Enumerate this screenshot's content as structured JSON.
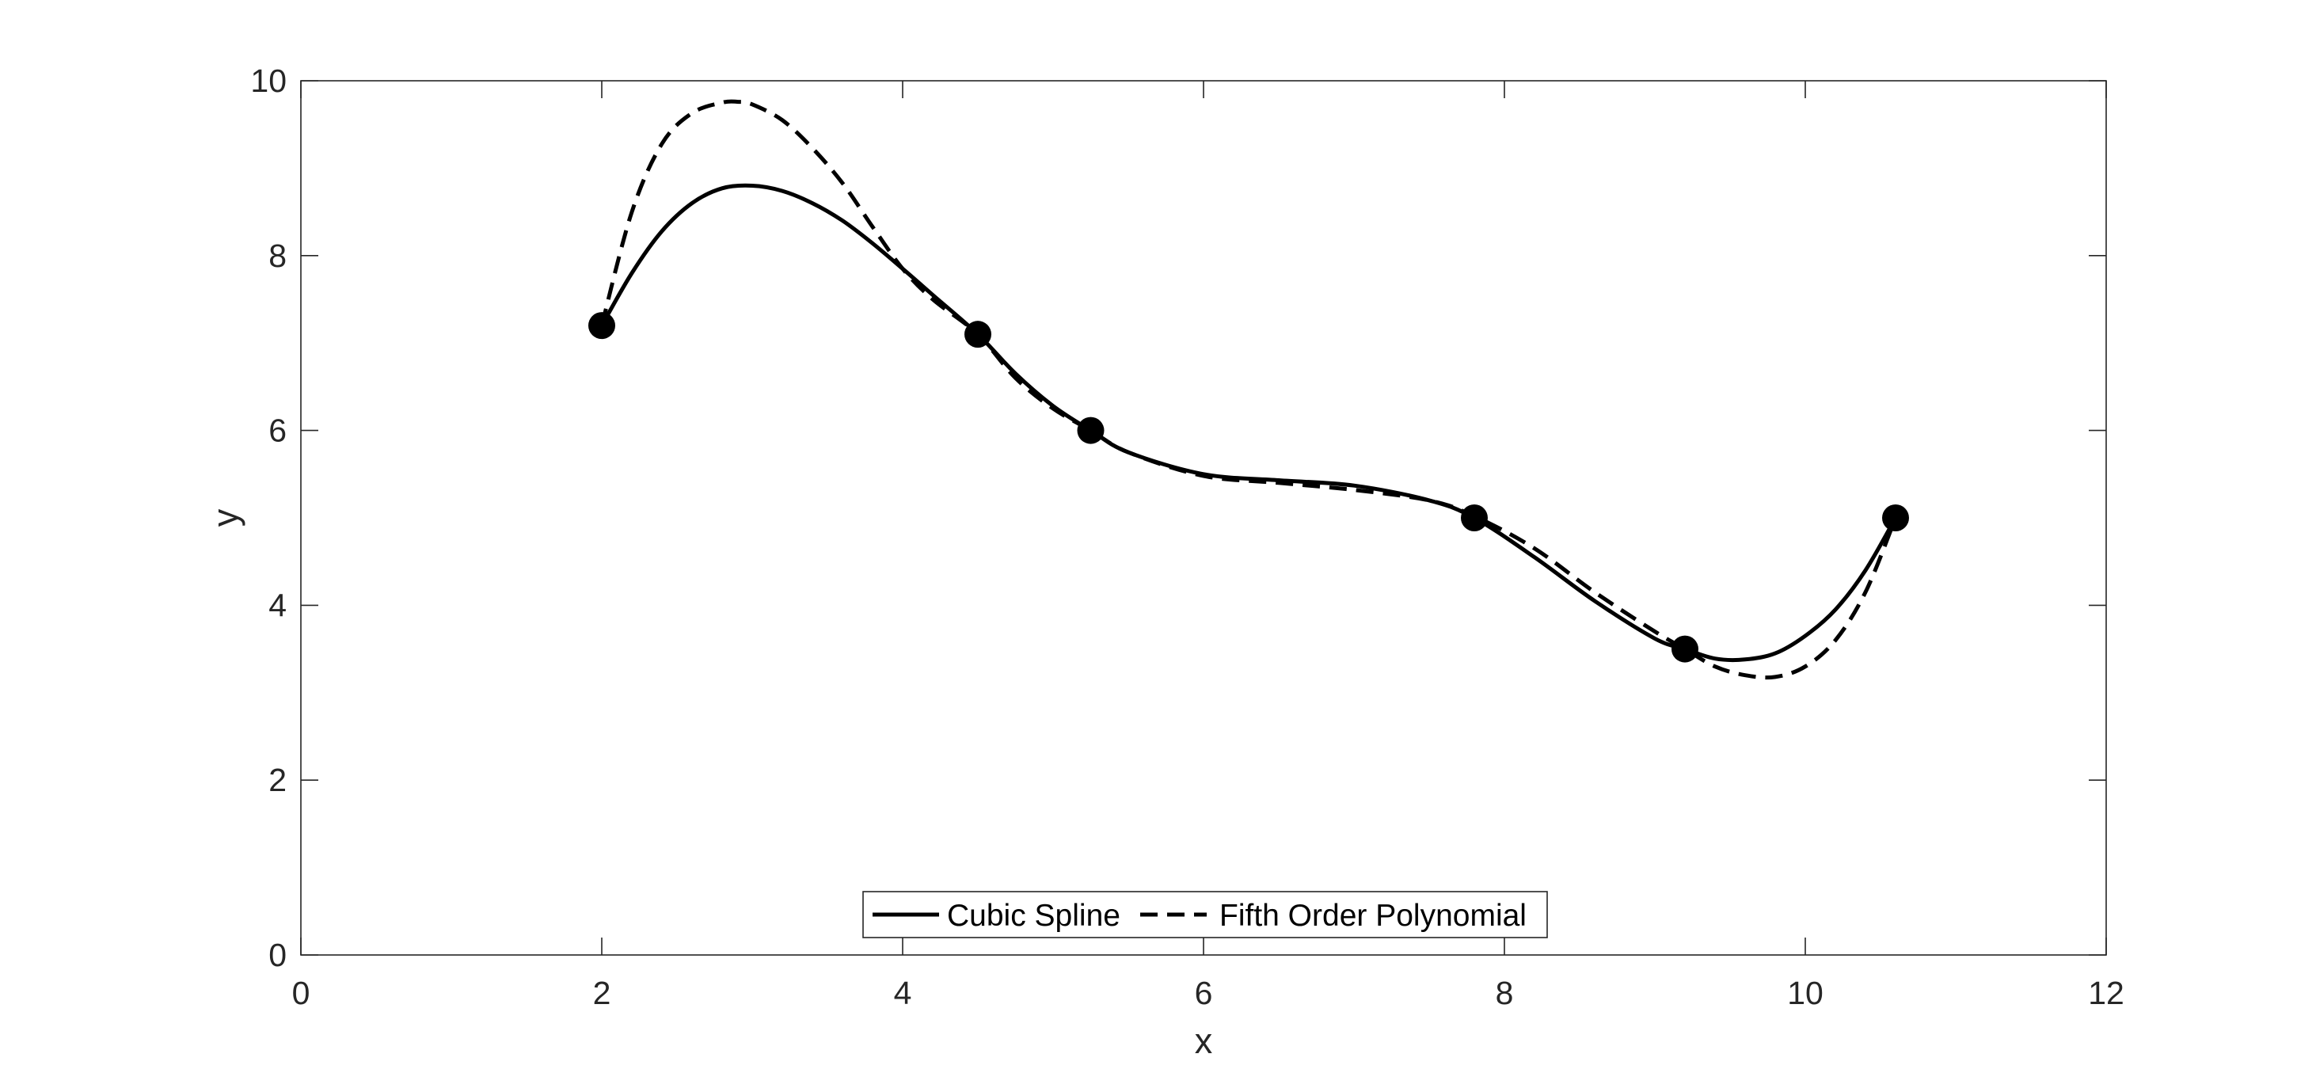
{
  "chart_data": {
    "type": "line",
    "title": "",
    "xlabel": "x",
    "ylabel": "y",
    "xlim": [
      0,
      12
    ],
    "ylim": [
      0,
      10
    ],
    "xticks": [
      0,
      2,
      4,
      6,
      8,
      10,
      12
    ],
    "yticks": [
      0,
      2,
      4,
      6,
      8,
      10
    ],
    "grid": false,
    "legend_position": "bottom-center",
    "legend_orientation": "horizontal",
    "colors": {
      "line": "#000000",
      "axis": "#262626",
      "background": "#ffffff"
    },
    "data_points": {
      "x": [
        2.0,
        4.5,
        5.25,
        7.8,
        9.2,
        10.6
      ],
      "y": [
        7.2,
        7.1,
        6.0,
        5.0,
        3.5,
        5.0
      ]
    },
    "series": [
      {
        "name": "Cubic Spline",
        "style": "solid",
        "x": [
          2.0,
          2.2,
          2.4,
          2.6,
          2.8,
          3.0,
          3.2,
          3.4,
          3.6,
          3.8,
          4.0,
          4.2,
          4.5,
          4.75,
          5.0,
          5.25,
          5.5,
          6.0,
          6.5,
          7.0,
          7.5,
          7.8,
          8.2,
          8.6,
          9.0,
          9.2,
          9.4,
          9.6,
          9.8,
          10.0,
          10.2,
          10.4,
          10.6
        ],
        "y": [
          7.2,
          7.8,
          8.28,
          8.6,
          8.77,
          8.8,
          8.74,
          8.6,
          8.4,
          8.14,
          7.85,
          7.55,
          7.1,
          6.65,
          6.28,
          6.0,
          5.75,
          5.5,
          5.43,
          5.37,
          5.2,
          5.0,
          4.55,
          4.05,
          3.62,
          3.5,
          3.39,
          3.38,
          3.45,
          3.65,
          3.95,
          4.4,
          5.0
        ]
      },
      {
        "name": "Fifth Order Polynomial",
        "style": "dashed",
        "x": [
          2.0,
          2.2,
          2.4,
          2.6,
          2.8,
          2.9,
          3.0,
          3.2,
          3.4,
          3.6,
          3.8,
          4.0,
          4.2,
          4.5,
          4.75,
          5.0,
          5.25,
          5.5,
          6.0,
          6.5,
          7.0,
          7.5,
          7.8,
          8.2,
          8.6,
          9.0,
          9.2,
          9.4,
          9.6,
          9.8,
          10.0,
          10.2,
          10.4,
          10.6
        ],
        "y": [
          7.2,
          8.5,
          9.28,
          9.63,
          9.75,
          9.76,
          9.73,
          9.55,
          9.23,
          8.83,
          8.33,
          7.85,
          7.5,
          7.1,
          6.6,
          6.25,
          6.0,
          5.75,
          5.48,
          5.4,
          5.32,
          5.2,
          5.02,
          4.65,
          4.15,
          3.7,
          3.5,
          3.3,
          3.2,
          3.18,
          3.3,
          3.6,
          4.15,
          5.0
        ]
      }
    ]
  }
}
